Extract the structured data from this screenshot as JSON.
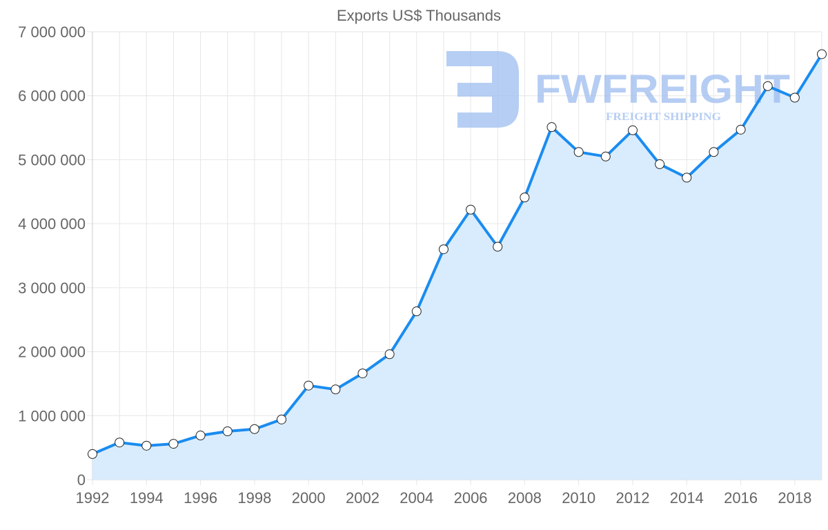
{
  "chart_data": {
    "type": "area",
    "title": "Exports US$ Thousands",
    "xlabel": "",
    "ylabel": "",
    "x": [
      1992,
      1993,
      1994,
      1995,
      1996,
      1997,
      1998,
      1999,
      2000,
      2001,
      2002,
      2003,
      2004,
      2005,
      2006,
      2007,
      2008,
      2009,
      2010,
      2011,
      2012,
      2013,
      2014,
      2015,
      2016,
      2017,
      2018,
      2019
    ],
    "values": [
      400000,
      580000,
      530000,
      560000,
      690000,
      755000,
      790000,
      940000,
      1470000,
      1410000,
      1660000,
      1960000,
      2630000,
      3600000,
      4220000,
      3640000,
      4410000,
      5510000,
      5120000,
      5050000,
      5460000,
      4930000,
      4720000,
      5120000,
      5470000,
      6150000,
      5970000,
      6650000
    ],
    "ylim": [
      0,
      7000000
    ],
    "yticks": [
      0,
      1000000,
      2000000,
      3000000,
      4000000,
      5000000,
      6000000,
      7000000
    ],
    "ytick_labels": [
      "0",
      "1 000 000",
      "2 000 000",
      "3 000 000",
      "4 000 000",
      "5 000 000",
      "6 000 000",
      "7 000 000"
    ],
    "xtick_labels": [
      "1992",
      "1994",
      "1996",
      "1998",
      "2000",
      "2002",
      "2004",
      "2006",
      "2008",
      "2010",
      "2012",
      "2014",
      "2016",
      "2018"
    ],
    "grid": true,
    "line_color": "#1a8cf0",
    "fill_color": "#d9ecfd"
  },
  "watermark": {
    "brand": "FWFREIGHT",
    "tagline": "FREIGHT SHIPPING",
    "color": "#9ebdef"
  }
}
